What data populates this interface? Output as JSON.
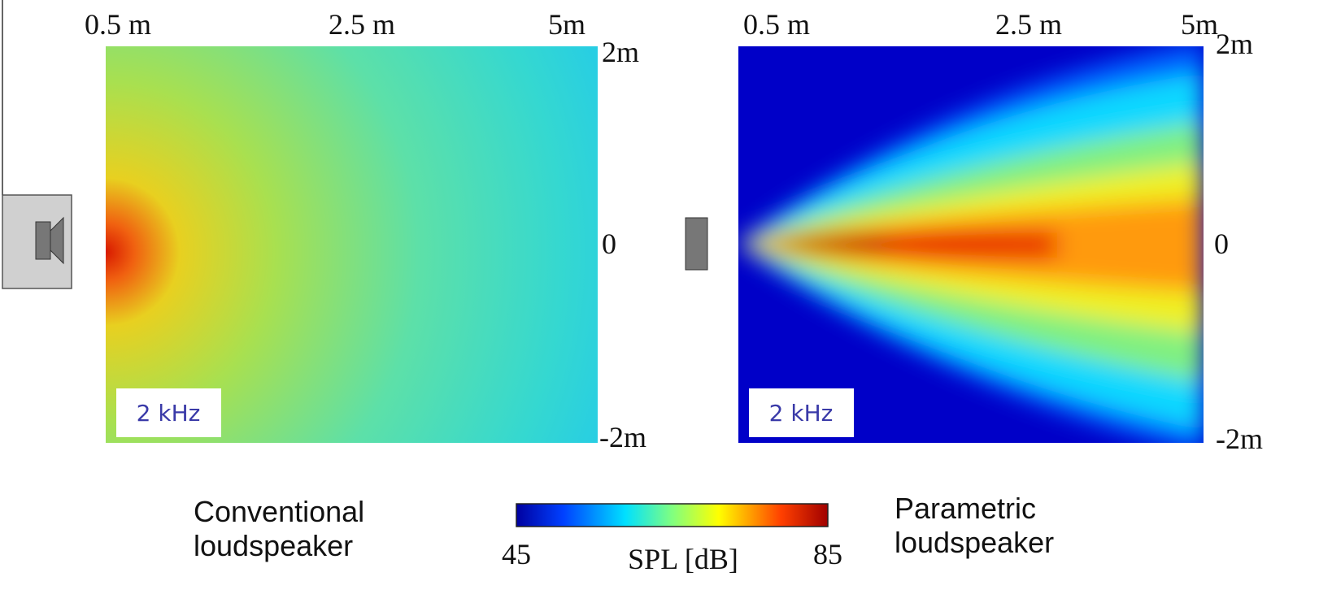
{
  "panels": [
    {
      "x_labels": [
        "0.5 m",
        "2.5 m",
        "5m"
      ],
      "y_labels": [
        "2m",
        "0",
        "-2m"
      ],
      "badge": "2 kHz"
    },
    {
      "x_labels": [
        "0.5 m",
        "2.5 m",
        "5m"
      ],
      "y_labels": [
        "2m",
        "0",
        "-2m"
      ],
      "badge": "2 kHz"
    }
  ],
  "captions": {
    "left": [
      "Conventional",
      "loudspeaker"
    ],
    "right": [
      "Parametric",
      "loudspeaker"
    ]
  },
  "colorbar": {
    "min": 45,
    "max": 85,
    "label": "SPL [dB]"
  }
}
